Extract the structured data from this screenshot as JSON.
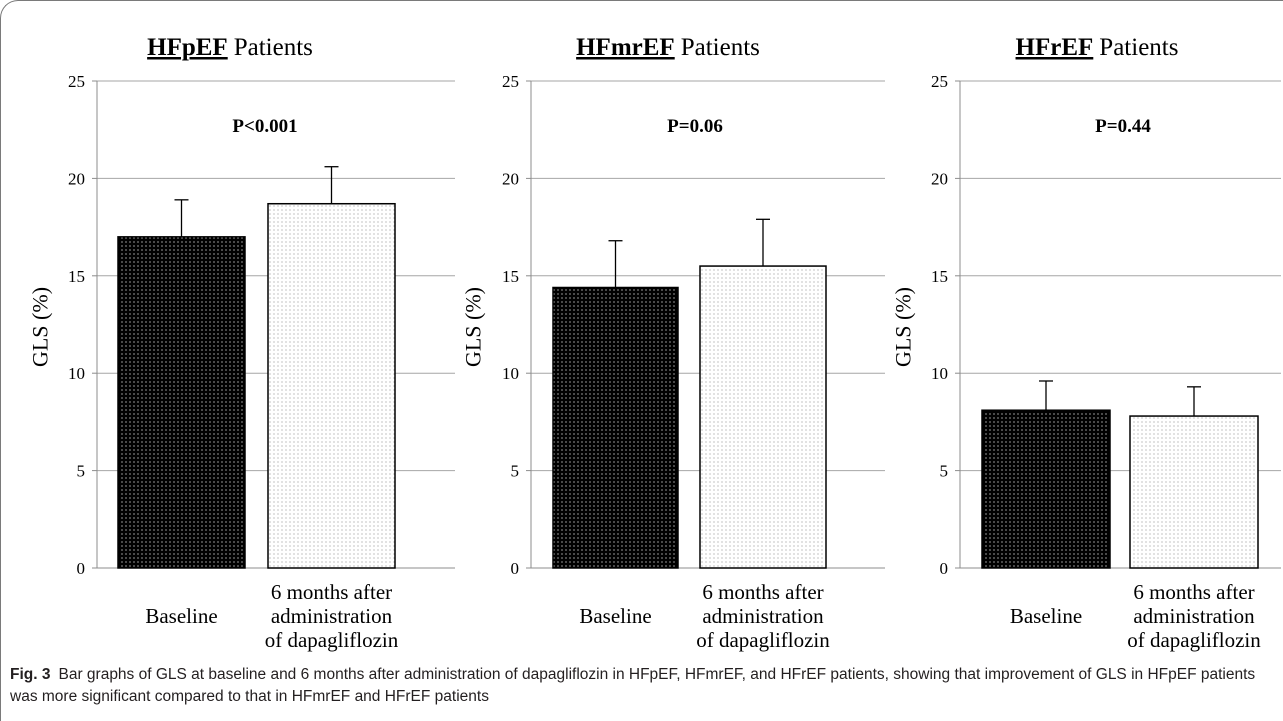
{
  "figure": {
    "caption_label": "Fig. 3",
    "caption_text": "Bar graphs of GLS at baseline and 6 months after administration of dapagliflozin in HFpEF, HFmrEF, and HFrEF patients, showing that improvement of GLS in HFpEF patients was more significant compared to that in HFmrEF and HFrEF patients"
  },
  "colors": {
    "baseline_fill": "#000000",
    "baseline_dots": "#ffffff",
    "followup_fill": "#ffffff",
    "followup_dots": "#9a9a9a",
    "grid": "#a6a6a6",
    "axis": "#8c8c8c"
  },
  "chart_data": [
    {
      "type": "bar",
      "title": {
        "group": "HFpEF",
        "suffix": "Patients"
      },
      "ylabel": "GLS (%)",
      "ylim": [
        0,
        25
      ],
      "yticks": [
        0,
        5,
        10,
        15,
        20,
        25
      ],
      "grid": true,
      "legend": "none",
      "categories": [
        [
          "Baseline"
        ],
        [
          "6 months after",
          "administration",
          "of dapagliflozin"
        ]
      ],
      "values": [
        17.0,
        18.7
      ],
      "error_upper": [
        1.9,
        1.9
      ],
      "annotation": "P<0.001"
    },
    {
      "type": "bar",
      "title": {
        "group": "HFmrEF",
        "suffix": "Patients"
      },
      "ylabel": "GLS (%)",
      "ylim": [
        0,
        25
      ],
      "yticks": [
        0,
        5,
        10,
        15,
        20,
        25
      ],
      "grid": true,
      "legend": "none",
      "categories": [
        [
          "Baseline"
        ],
        [
          "6 months after",
          "administration",
          "of dapagliflozin"
        ]
      ],
      "values": [
        14.4,
        15.5
      ],
      "error_upper": [
        2.4,
        2.4
      ],
      "annotation": "P=0.06"
    },
    {
      "type": "bar",
      "title": {
        "group": "HFrEF",
        "suffix": "Patients"
      },
      "ylabel": "GLS (%)",
      "ylim": [
        0,
        25
      ],
      "yticks": [
        0,
        5,
        10,
        15,
        20,
        25
      ],
      "grid": true,
      "legend": "none",
      "categories": [
        [
          "Baseline"
        ],
        [
          "6 months after",
          "administration",
          "of dapagliflozin"
        ]
      ],
      "values": [
        8.1,
        7.8
      ],
      "error_upper": [
        1.5,
        1.5
      ],
      "annotation": "P=0.44"
    }
  ]
}
